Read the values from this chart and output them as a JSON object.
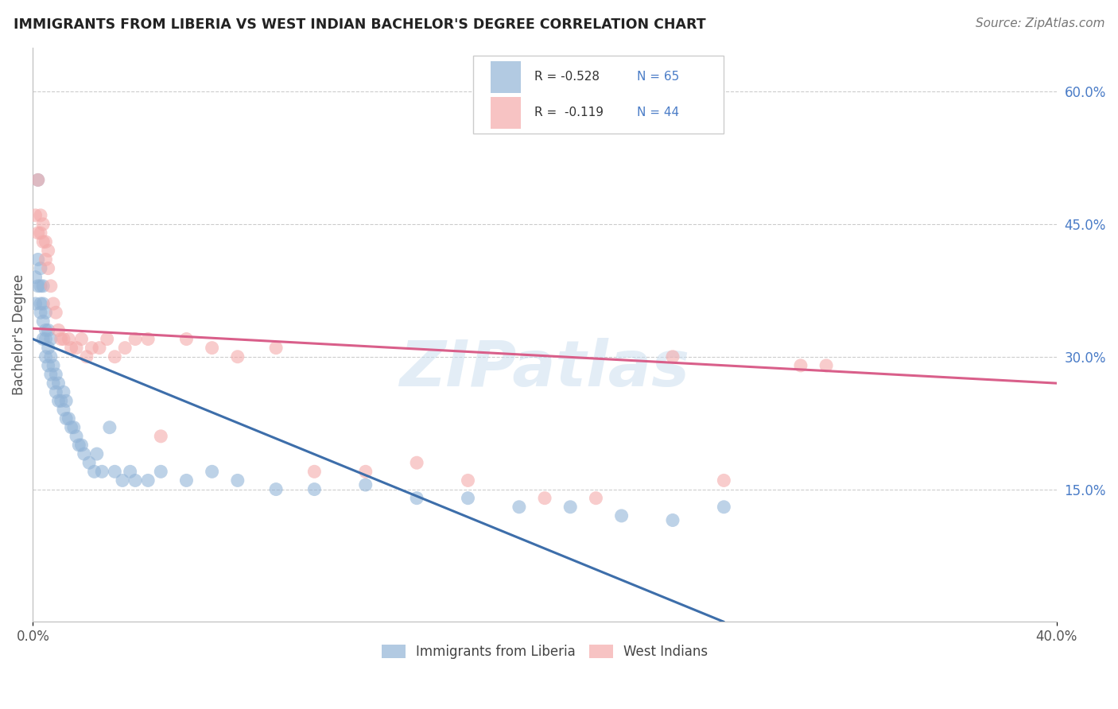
{
  "title": "IMMIGRANTS FROM LIBERIA VS WEST INDIAN BACHELOR'S DEGREE CORRELATION CHART",
  "source": "Source: ZipAtlas.com",
  "ylabel": "Bachelor's Degree",
  "right_yticks": [
    "60.0%",
    "45.0%",
    "30.0%",
    "15.0%"
  ],
  "right_ytick_vals": [
    0.6,
    0.45,
    0.3,
    0.15
  ],
  "legend_liberia_R": "R = -0.528",
  "legend_liberia_N": "N = 65",
  "legend_westindian_R": "R =  -0.119",
  "legend_westindian_N": "N = 44",
  "blue_color": "#92B4D7",
  "pink_color": "#F4AAAA",
  "blue_line_color": "#3D6EAA",
  "pink_line_color": "#D95F8A",
  "grid_color": "#CCCCCC",
  "background_color": "#FFFFFF",
  "text_color_blue": "#4A7CC7",
  "watermark": "ZIPatlas",
  "liberia_x": [
    0.001,
    0.001,
    0.002,
    0.002,
    0.002,
    0.003,
    0.003,
    0.003,
    0.003,
    0.004,
    0.004,
    0.004,
    0.004,
    0.005,
    0.005,
    0.005,
    0.005,
    0.006,
    0.006,
    0.006,
    0.007,
    0.007,
    0.007,
    0.008,
    0.008,
    0.009,
    0.009,
    0.01,
    0.01,
    0.011,
    0.012,
    0.012,
    0.013,
    0.013,
    0.014,
    0.015,
    0.016,
    0.017,
    0.018,
    0.019,
    0.02,
    0.022,
    0.024,
    0.025,
    0.027,
    0.03,
    0.032,
    0.035,
    0.038,
    0.04,
    0.045,
    0.05,
    0.06,
    0.07,
    0.08,
    0.095,
    0.11,
    0.13,
    0.15,
    0.17,
    0.19,
    0.21,
    0.23,
    0.25,
    0.27
  ],
  "liberia_y": [
    0.36,
    0.39,
    0.38,
    0.41,
    0.5,
    0.35,
    0.36,
    0.38,
    0.4,
    0.32,
    0.34,
    0.36,
    0.38,
    0.3,
    0.32,
    0.33,
    0.35,
    0.29,
    0.31,
    0.33,
    0.28,
    0.3,
    0.32,
    0.27,
    0.29,
    0.26,
    0.28,
    0.25,
    0.27,
    0.25,
    0.24,
    0.26,
    0.23,
    0.25,
    0.23,
    0.22,
    0.22,
    0.21,
    0.2,
    0.2,
    0.19,
    0.18,
    0.17,
    0.19,
    0.17,
    0.22,
    0.17,
    0.16,
    0.17,
    0.16,
    0.16,
    0.17,
    0.16,
    0.17,
    0.16,
    0.15,
    0.15,
    0.155,
    0.14,
    0.14,
    0.13,
    0.13,
    0.12,
    0.115,
    0.13
  ],
  "westindian_x": [
    0.001,
    0.002,
    0.002,
    0.003,
    0.003,
    0.004,
    0.004,
    0.005,
    0.005,
    0.006,
    0.006,
    0.007,
    0.008,
    0.009,
    0.01,
    0.011,
    0.012,
    0.014,
    0.015,
    0.017,
    0.019,
    0.021,
    0.023,
    0.026,
    0.029,
    0.032,
    0.036,
    0.04,
    0.045,
    0.05,
    0.06,
    0.07,
    0.08,
    0.095,
    0.11,
    0.13,
    0.15,
    0.17,
    0.2,
    0.22,
    0.25,
    0.27,
    0.3,
    0.31
  ],
  "westindian_y": [
    0.46,
    0.44,
    0.5,
    0.44,
    0.46,
    0.43,
    0.45,
    0.41,
    0.43,
    0.4,
    0.42,
    0.38,
    0.36,
    0.35,
    0.33,
    0.32,
    0.32,
    0.32,
    0.31,
    0.31,
    0.32,
    0.3,
    0.31,
    0.31,
    0.32,
    0.3,
    0.31,
    0.32,
    0.32,
    0.21,
    0.32,
    0.31,
    0.3,
    0.31,
    0.17,
    0.17,
    0.18,
    0.16,
    0.14,
    0.14,
    0.3,
    0.16,
    0.29,
    0.29
  ],
  "xlim": [
    0.0,
    0.4
  ],
  "ylim": [
    0.0,
    0.65
  ],
  "ygrid": [
    0.15,
    0.3,
    0.45,
    0.6
  ]
}
